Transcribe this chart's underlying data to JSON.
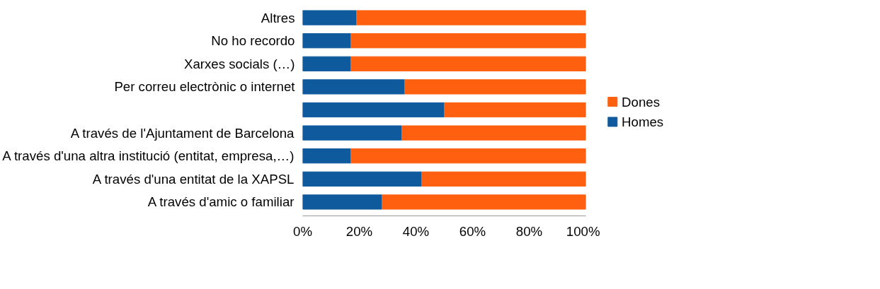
{
  "chart_data": {
    "type": "bar",
    "orientation": "horizontal",
    "stacked": true,
    "categories": [
      "Altres",
      "No ho recordo",
      "Xarxes socials (…)",
      "Per correu electrònic o internet",
      null,
      "A través de l'Ajuntament de Barcelona",
      "A través d'una altra institució (entitat, empresa,…)",
      "A través d'una entitat de la XAPSL",
      "A través d'amic o familiar"
    ],
    "series": [
      {
        "name": "Homes",
        "color": "#0e5a9c",
        "values": [
          19,
          17,
          17,
          36,
          50,
          35,
          17,
          42,
          28
        ]
      },
      {
        "name": "Dones",
        "color": "#ff600f",
        "values": [
          81,
          83,
          83,
          64,
          50,
          65,
          83,
          58,
          72
        ]
      }
    ],
    "xlim": [
      0,
      100
    ],
    "xticks": [
      {
        "value": 0,
        "label": "0%"
      },
      {
        "value": 20,
        "label": "20%"
      },
      {
        "value": 40,
        "label": "40%"
      },
      {
        "value": 60,
        "label": "60%"
      },
      {
        "value": 80,
        "label": "80%"
      },
      {
        "value": 100,
        "label": "100%"
      }
    ],
    "grid": false,
    "legend": "right"
  }
}
